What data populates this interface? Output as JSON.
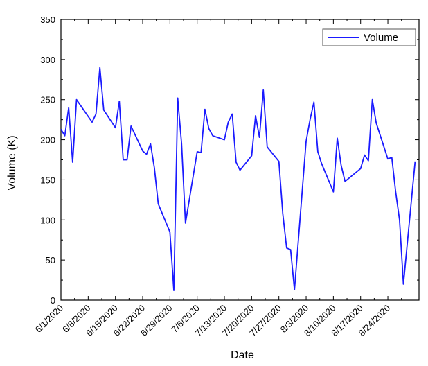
{
  "chart_data": {
    "type": "line",
    "title": "",
    "xlabel": "Date",
    "ylabel": "Volume (K)",
    "ylim": [
      0,
      350
    ],
    "yticks": [
      0,
      50,
      100,
      150,
      200,
      250,
      300,
      350
    ],
    "xlim": [
      "2020-06-01",
      "2020-09-01"
    ],
    "xtick_labels": [
      "6/1/2020",
      "6/8/2020",
      "6/15/2020",
      "6/22/2020",
      "6/29/2020",
      "7/6/2020",
      "7/13/2020",
      "7/20/2020",
      "7/27/2020",
      "8/3/2020",
      "8/10/2020",
      "8/17/2020",
      "8/24/2020"
    ],
    "grid": false,
    "legend_position": "top-right",
    "line_color": "#1a1aff",
    "series": [
      {
        "name": "Volume",
        "x": [
          "2020-06-01",
          "2020-06-02",
          "2020-06-03",
          "2020-06-04",
          "2020-06-05",
          "2020-06-09",
          "2020-06-10",
          "2020-06-11",
          "2020-06-12",
          "2020-06-15",
          "2020-06-16",
          "2020-06-17",
          "2020-06-18",
          "2020-06-19",
          "2020-06-22",
          "2020-06-23",
          "2020-06-24",
          "2020-06-25",
          "2020-06-26",
          "2020-06-29",
          "2020-06-30",
          "2020-07-01",
          "2020-07-02",
          "2020-07-03",
          "2020-07-06",
          "2020-07-07",
          "2020-07-08",
          "2020-07-09",
          "2020-07-10",
          "2020-07-13",
          "2020-07-14",
          "2020-07-15",
          "2020-07-16",
          "2020-07-17",
          "2020-07-20",
          "2020-07-21",
          "2020-07-22",
          "2020-07-23",
          "2020-07-24",
          "2020-07-27",
          "2020-07-28",
          "2020-07-29",
          "2020-07-30",
          "2020-07-31",
          "2020-08-03",
          "2020-08-04",
          "2020-08-05",
          "2020-08-06",
          "2020-08-07",
          "2020-08-10",
          "2020-08-11",
          "2020-08-12",
          "2020-08-13",
          "2020-08-14",
          "2020-08-17",
          "2020-08-18",
          "2020-08-19",
          "2020-08-20",
          "2020-08-21",
          "2020-08-24",
          "2020-08-25",
          "2020-08-26",
          "2020-08-27",
          "2020-08-28",
          "2020-08-31"
        ],
        "values": [
          213,
          205,
          240,
          172,
          250,
          222,
          232,
          290,
          237,
          215,
          248,
          175,
          175,
          217,
          186,
          182,
          195,
          165,
          120,
          85,
          12,
          252,
          195,
          96,
          185,
          184,
          238,
          214,
          205,
          200,
          222,
          232,
          172,
          162,
          180,
          230,
          203,
          262,
          191,
          173,
          108,
          65,
          63,
          13,
          198,
          225,
          247,
          185,
          170,
          135,
          202,
          168,
          148,
          152,
          164,
          181,
          174,
          250,
          221,
          176,
          178,
          135,
          100,
          20,
          173
        ]
      }
    ]
  }
}
